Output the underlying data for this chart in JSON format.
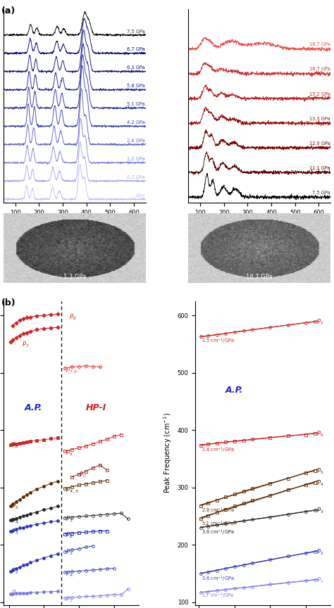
{
  "panel_a_left_labels": [
    "Atm",
    "0.3 GPa",
    "1.2 GPa",
    "2.8 GPa",
    "4.2 GPa",
    "5.1 GPa",
    "5.8 GPa",
    "6.3 GPa",
    "6.7 GPa",
    "7.5 GPa"
  ],
  "panel_a_right_labels": [
    "7.5 GPa",
    "11.1 GPa",
    "12.0 GPa",
    "13.3 GPa",
    "15.2 GPa",
    "16.7 GPa",
    "18.7 GPa"
  ],
  "left_colors": [
    "#c0c0ff",
    "#aaaaee",
    "#8888dd",
    "#6666cc",
    "#4444bb",
    "#3333aa",
    "#222299",
    "#111188",
    "#000077",
    "#000000"
  ],
  "right_colors": [
    "#000000",
    "#5a0000",
    "#7a0000",
    "#9a1010",
    "#bb2020",
    "#cc3030",
    "#ee5050"
  ],
  "photo1_label": "1.3 GPa",
  "photo2_label": "18.7 GPa",
  "dashed_line_x": 7.5,
  "AP_label_color": "#2222cc",
  "HPI_label_color": "#cc2222"
}
